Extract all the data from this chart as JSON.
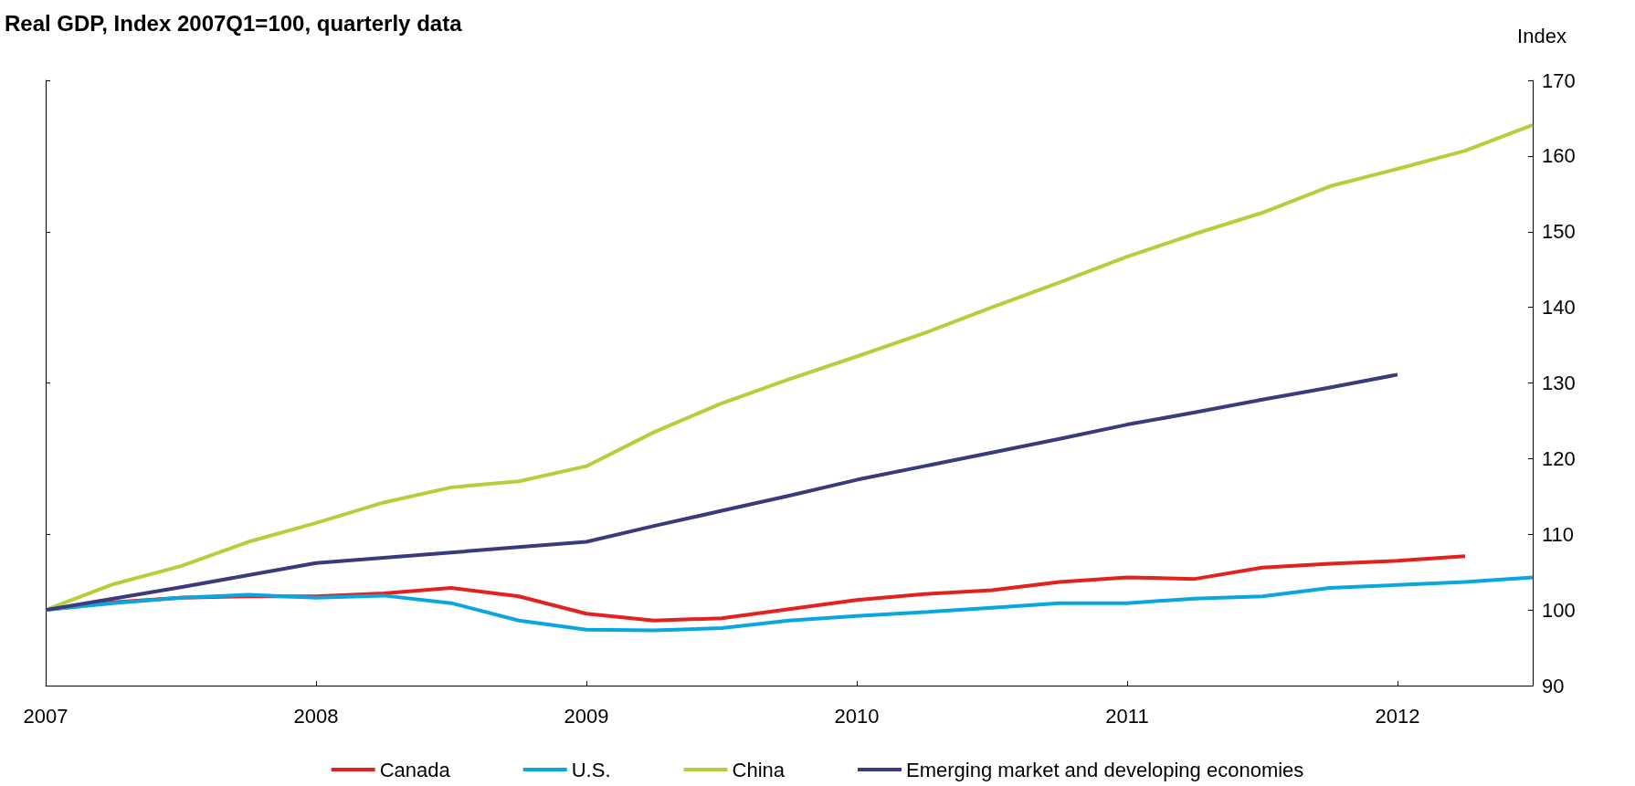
{
  "chart_data": {
    "type": "line",
    "title": "Real GDP, Index 2007Q1=100, quarterly data",
    "ylabel": "Index",
    "xlim": [
      2007,
      2012.5
    ],
    "xticks": [
      2007,
      2008,
      2009,
      2010,
      2011,
      2012
    ],
    "ylim": [
      90,
      170
    ],
    "yticks": [
      90,
      100,
      110,
      120,
      130,
      140,
      150,
      160,
      170
    ],
    "x": [
      2007,
      2007.25,
      2007.5,
      2007.75,
      2008,
      2008.25,
      2008.5,
      2008.75,
      2009,
      2009.25,
      2009.5,
      2009.75,
      2010,
      2010.25,
      2010.5,
      2010.75,
      2011,
      2011.25,
      2011.5,
      2011.75,
      2012,
      2012.25,
      2012.5
    ],
    "series": [
      {
        "name": "Canada",
        "color": "#e3211f",
        "values": [
          100,
          101,
          101.6,
          101.8,
          101.8,
          102.2,
          102.9,
          101.8,
          99.5,
          98.6,
          98.9,
          100.1,
          101.3,
          102.1,
          102.6,
          103.7,
          104.3,
          104.1,
          105.6,
          106.1,
          106.5,
          107.1,
          null
        ]
      },
      {
        "name": "U.S.",
        "color": "#0aa6e0",
        "values": [
          100,
          100.9,
          101.6,
          102,
          101.6,
          101.9,
          100.9,
          98.6,
          97.4,
          97.3,
          97.6,
          98.6,
          99.2,
          99.7,
          100.3,
          100.9,
          100.9,
          101.5,
          101.8,
          102.9,
          103.3,
          103.7,
          104.3
        ]
      },
      {
        "name": "China",
        "color": "#b5cf3a",
        "values": [
          100,
          103.4,
          105.8,
          109,
          111.5,
          114.2,
          116.2,
          117,
          119,
          123.5,
          127.3,
          130.5,
          133.5,
          136.6,
          140,
          143.3,
          146.7,
          149.7,
          152.5,
          156,
          158.3,
          160.7,
          164.1
        ]
      },
      {
        "name": "Emerging market and developing economies",
        "color": "#3b3a7c",
        "values": [
          100,
          101.5,
          103,
          104.6,
          106.2,
          106.9,
          107.6,
          108.3,
          109,
          111.1,
          113.1,
          115.1,
          117.2,
          119,
          120.8,
          122.6,
          124.5,
          126.1,
          127.8,
          129.4,
          131.1,
          null,
          null
        ]
      }
    ],
    "grid": false,
    "legend": "bottom",
    "marker": "none",
    "line_style": "solid"
  }
}
